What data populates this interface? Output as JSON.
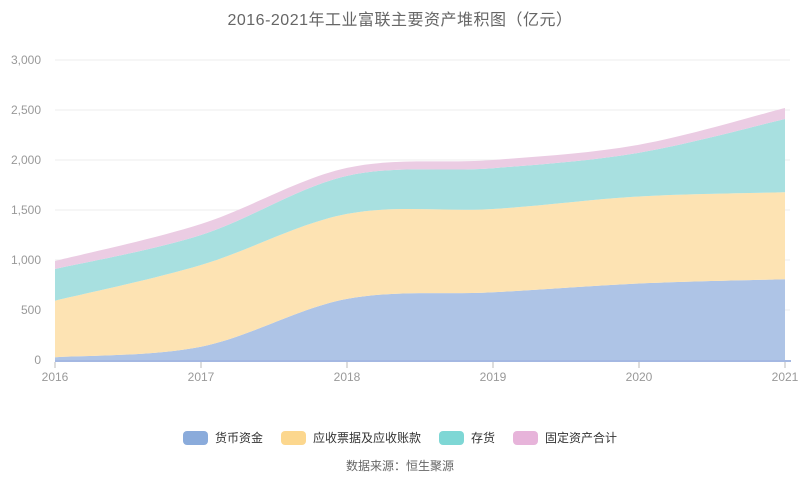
{
  "title": "2016-2021年工业富联主要资产堆积图（亿元）",
  "source": "数据来源：恒生聚源",
  "colors": {
    "background": "#ffffff",
    "title_text": "#666666",
    "axis_label": "#999999",
    "grid_line": "#eeeeee",
    "axis_line": "#a4b8e2",
    "tick_mark": "#bbbbbb",
    "legend_text": "#333333",
    "source_text": "#666666"
  },
  "chart_data": {
    "type": "area",
    "stacked": true,
    "title": "2016-2021年工业富联主要资产堆积图（亿元）",
    "x": [
      "2016",
      "2017",
      "2018",
      "2019",
      "2020",
      "2021"
    ],
    "series": [
      {
        "name": "货币资金",
        "values": [
          27,
          133,
          611,
          677,
          765,
          808
        ],
        "color": "#8aabdb",
        "area_color": "#aec4e6"
      },
      {
        "name": "应收票据及应收账款",
        "values": [
          566,
          817,
          850,
          833,
          870,
          869
        ],
        "color": "#fcd78e",
        "area_color": "#fde3b3"
      },
      {
        "name": "存货",
        "values": [
          317,
          300,
          380,
          408,
          438,
          733
        ],
        "color": "#7ed7d5",
        "area_color": "#a8e0e0"
      },
      {
        "name": "固定资产合计",
        "values": [
          80,
          110,
          80,
          82,
          80,
          110
        ],
        "color": "#e7b4da",
        "area_color": "#ebcce3"
      }
    ],
    "ylim": [
      0,
      3000
    ],
    "ytick_step": 500,
    "ytick_labels": [
      "0",
      "500",
      "1,000",
      "1,500",
      "2,000",
      "2,500",
      "3,000"
    ],
    "xlabel": "",
    "ylabel": "",
    "grid": true,
    "legend_position": "bottom"
  }
}
